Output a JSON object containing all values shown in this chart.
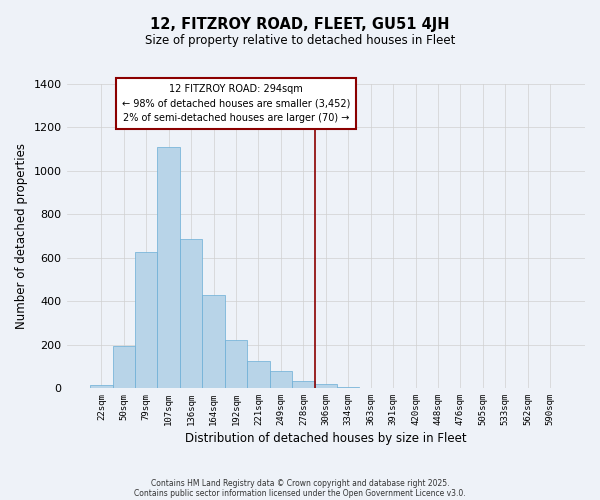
{
  "title_line1": "12, FITZROY ROAD, FLEET, GU51 4JH",
  "title_line2": "Size of property relative to detached houses in Fleet",
  "xlabel": "Distribution of detached houses by size in Fleet",
  "ylabel": "Number of detached properties",
  "categories": [
    "22sqm",
    "50sqm",
    "79sqm",
    "107sqm",
    "136sqm",
    "164sqm",
    "192sqm",
    "221sqm",
    "249sqm",
    "278sqm",
    "306sqm",
    "334sqm",
    "363sqm",
    "391sqm",
    "420sqm",
    "448sqm",
    "476sqm",
    "505sqm",
    "533sqm",
    "562sqm",
    "590sqm"
  ],
  "values": [
    15,
    193,
    628,
    1109,
    684,
    428,
    222,
    122,
    80,
    33,
    20,
    5,
    2,
    0,
    0,
    0,
    0,
    0,
    0,
    0,
    0
  ],
  "bar_color": "#b8d4e8",
  "bar_edge_color": "#6aaed6",
  "background_color": "#eef2f8",
  "grid_color": "#d0d0d0",
  "ylim": [
    0,
    1400
  ],
  "yticks": [
    0,
    200,
    400,
    600,
    800,
    1000,
    1200,
    1400
  ],
  "annotation_line1": "12 FITZROY ROAD: 294sqm",
  "annotation_line2": "← 98% of detached houses are smaller (3,452)",
  "annotation_line3": "2% of semi-detached houses are larger (70) →",
  "vline_x": 9.5,
  "vline_color": "#8b0000",
  "annotation_box_color": "#ffffff",
  "annotation_box_edge": "#8b0000",
  "footer_line1": "Contains HM Land Registry data © Crown copyright and database right 2025.",
  "footer_line2": "Contains public sector information licensed under the Open Government Licence v3.0."
}
